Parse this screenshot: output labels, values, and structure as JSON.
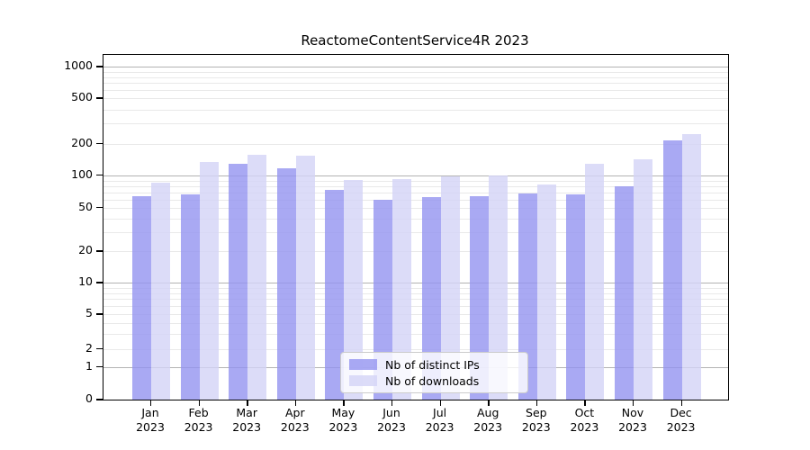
{
  "title": "ReactomeContentService4R 2023",
  "chart_data": {
    "type": "bar",
    "title": "ReactomeContentService4R 2023",
    "categories": [
      "Jan 2023",
      "Feb 2023",
      "Mar 2023",
      "Apr 2023",
      "May 2023",
      "Jun 2023",
      "Jul 2023",
      "Aug 2023",
      "Sep 2023",
      "Oct 2023",
      "Nov 2023",
      "Dec 2023"
    ],
    "x_tick_months": [
      "Jan",
      "Feb",
      "Mar",
      "Apr",
      "May",
      "Jun",
      "Jul",
      "Aug",
      "Sep",
      "Oct",
      "Nov",
      "Dec"
    ],
    "x_tick_year": "2023",
    "series": [
      {
        "name": "Nb of distinct IPs",
        "color": "rgba(148,148,240,0.8)",
        "color_hex": "#a9a9f1",
        "values": [
          64,
          67,
          128,
          118,
          74,
          60,
          63,
          64,
          68,
          67,
          80,
          215
        ]
      },
      {
        "name": "Nb of downloads",
        "color": "rgba(211,211,246,0.8)",
        "color_hex": "#dcdcf8",
        "values": [
          86,
          135,
          158,
          155,
          91,
          93,
          98,
          100,
          83,
          128,
          141,
          243
        ]
      }
    ],
    "xlabel": "",
    "ylabel": "",
    "yscale": "symlog",
    "ylim": [
      0,
      1000
    ],
    "y_ticks": [
      1000,
      500,
      200,
      100,
      50,
      20,
      10,
      5,
      2,
      1,
      0
    ],
    "grid": "both",
    "grid_major_values": [
      1,
      10,
      100,
      1000
    ],
    "legend_position": "lower center"
  },
  "colors": {
    "background": "#ffffff",
    "axis": "#000000",
    "grid_major": "#b3b3b3",
    "grid_minor": "#e9e9e9",
    "legend_border": "#cccccc"
  }
}
